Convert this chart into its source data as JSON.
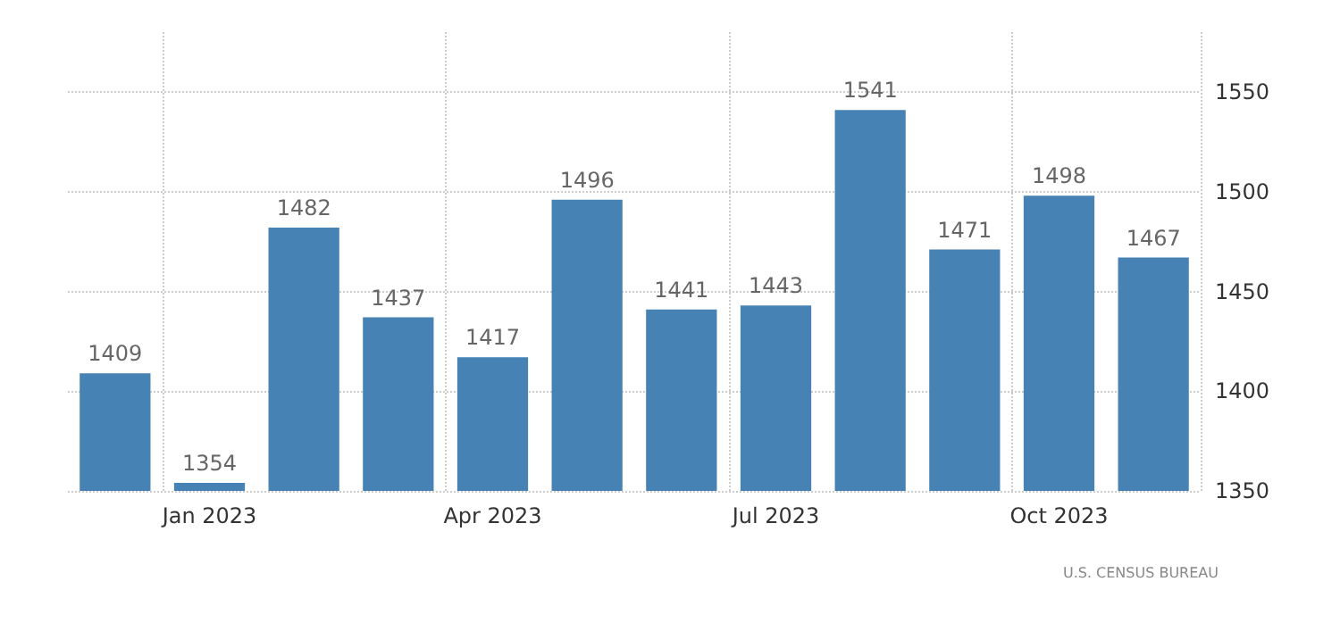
{
  "chart_data": {
    "type": "bar",
    "categories": [
      null,
      "Jan 2023",
      null,
      null,
      "Apr 2023",
      null,
      null,
      "Jul 2023",
      null,
      null,
      "Oct 2023",
      null
    ],
    "values": [
      1409,
      1354,
      1482,
      1437,
      1417,
      1496,
      1441,
      1443,
      1541,
      1471,
      1498,
      1467
    ],
    "color": "#4682b4",
    "ylim": [
      1350,
      1580
    ],
    "yticks": [
      1350,
      1400,
      1450,
      1500,
      1550
    ],
    "grid": true,
    "data_labels": true,
    "annotations": [
      "U.S. CENSUS BUREAU"
    ]
  }
}
